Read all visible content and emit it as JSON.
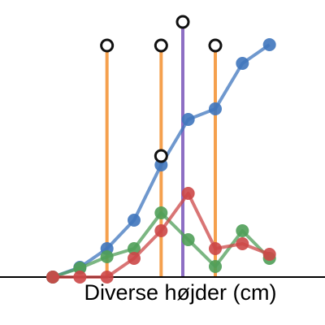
{
  "chart_data": {
    "type": "line",
    "x_label": "Diverse højder (cm)",
    "x": [
      0,
      1,
      2,
      3,
      4,
      5,
      6,
      7,
      8
    ],
    "xlim": [
      -1.95,
      10.05
    ],
    "ylim": [
      -5.9,
      34.1
    ],
    "series": [
      {
        "color": "#3f76bd",
        "values": [
          0,
          1.2,
          3.5,
          7,
          13.8,
          19.4,
          20.7,
          26.3,
          28.6
        ]
      },
      {
        "color": "#4f9e58",
        "values": [
          0,
          1.1,
          2.5,
          3.5,
          7.9,
          4.6,
          1.3,
          5.7,
          2.3
        ]
      },
      {
        "color": "#cc4747",
        "values": [
          0,
          0,
          0,
          2.3,
          5.7,
          10.3,
          3.5,
          4.1,
          2.8
        ]
      }
    ],
    "stems": [
      {
        "x": 2,
        "top": 28.5,
        "color": "#f5a04d"
      },
      {
        "x": 4,
        "top": 28.5,
        "color": "#f5a04d"
      },
      {
        "x": 4.8,
        "top": 31.4,
        "color": "#8e6fc4"
      },
      {
        "x": 6,
        "top": 28.5,
        "color": "#f5a04d"
      }
    ],
    "markers": {
      "x": [
        2,
        4,
        4,
        4.8,
        6
      ],
      "values": [
        28.5,
        28.5,
        14.9,
        31.4,
        28.5
      ],
      "color": "#111111"
    }
  }
}
